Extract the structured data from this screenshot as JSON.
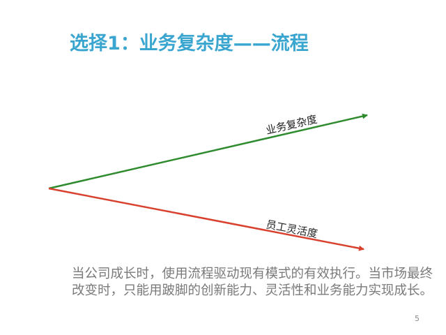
{
  "slide": {
    "title": "选择1：业务复杂度——流程",
    "diagram": {
      "arrows": [
        {
          "label": "业务复杂度",
          "color": "#2e8b2e",
          "direction": "up"
        },
        {
          "label": "员工灵活度",
          "color": "#d9412f",
          "direction": "down"
        }
      ]
    },
    "body_lines": [
      "当公司成长时，使用流程驱动现有模式的有效执行。当市场最终",
      "改变时，只能用跛脚的创新能力、灵活性和业务能力实现成长。"
    ],
    "page_number": "5",
    "colors": {
      "title": "#3aa6d0",
      "body": "#7a7a7a"
    }
  }
}
